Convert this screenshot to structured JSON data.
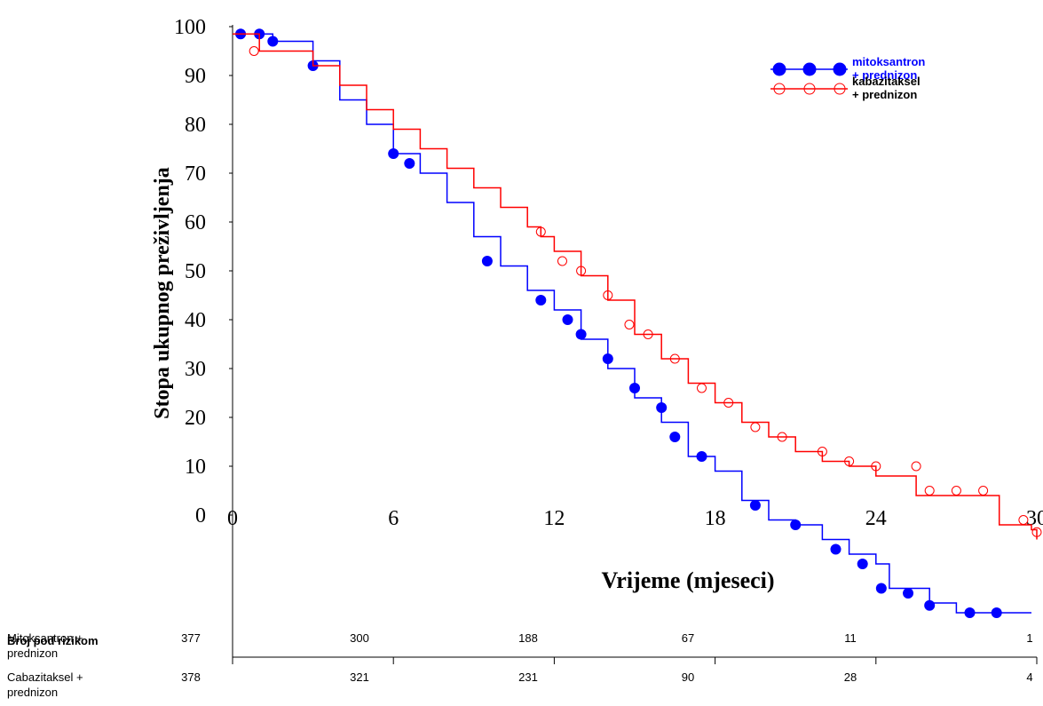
{
  "chart_data": {
    "type": "kaplan-meier",
    "y_label": "Stopa ukupnog preživljenja",
    "x_label": "Vrijeme (mjeseci)",
    "xlim": [
      0,
      30
    ],
    "ylim": [
      -29,
      101
    ],
    "xticks": [
      0,
      6,
      12,
      18,
      24,
      30
    ],
    "yticks": [
      0,
      10,
      20,
      30,
      40,
      50,
      60,
      70,
      80,
      90,
      100
    ],
    "series": [
      {
        "name": "mitoksantron\n+ prednizon",
        "color": "#0000ff",
        "marker": "filled",
        "x": [
          0,
          1.5,
          3,
          4,
          5,
          6,
          7,
          8,
          9,
          10,
          11,
          12,
          13,
          14,
          15,
          16,
          17,
          18,
          19,
          20,
          21,
          22,
          23,
          24,
          24.5,
          25,
          26,
          27,
          29.8
        ],
        "values": [
          98.5,
          97,
          93,
          85,
          80,
          74,
          70,
          64,
          57,
          51,
          46,
          42,
          36,
          30,
          24,
          19,
          12,
          9,
          3,
          -1,
          -2,
          -5,
          -8,
          -10,
          -15,
          -15,
          -18,
          -20,
          -20
        ],
        "censored_x": [
          0.3,
          1,
          1.5,
          3,
          6,
          6.6,
          9.5,
          11.5,
          12.5,
          13,
          14,
          15,
          16,
          16.5,
          17.5,
          19.5,
          21,
          22.5,
          23.5,
          24.2,
          25.2,
          26,
          27.5,
          28.5
        ],
        "censored_values": [
          98.5,
          98.5,
          97,
          92,
          74,
          72,
          52,
          44,
          40,
          37,
          32,
          26,
          22,
          16,
          12,
          2,
          -2,
          -7,
          -10,
          -15,
          -16,
          -18.5,
          -20,
          -20
        ]
      },
      {
        "name": "kabazitaksel\n+ prednizon",
        "color": "#ff0000",
        "marker": "open",
        "x": [
          0,
          1,
          3,
          4,
          5,
          6,
          7,
          8,
          9,
          10,
          11,
          11.5,
          12,
          13,
          14,
          15,
          16,
          17,
          18,
          19,
          20,
          21,
          22,
          23,
          24,
          25,
          25.5,
          28.5,
          28.6,
          29.8,
          30
        ],
        "values": [
          98.5,
          95,
          92,
          88,
          83,
          79,
          75,
          71,
          67,
          63,
          59,
          57,
          54,
          49,
          44,
          37,
          32,
          27,
          23,
          19,
          16,
          13,
          11,
          10,
          8,
          8,
          4,
          4,
          -2,
          -3,
          -5
        ],
        "censored_x": [
          0.8,
          11.5,
          12.3,
          13,
          14,
          14.8,
          15.5,
          16.5,
          17.5,
          18.5,
          19.5,
          20.5,
          22,
          23,
          24,
          25.5,
          26,
          27,
          28,
          29.5,
          30
        ],
        "censored_values": [
          95,
          58,
          52,
          50,
          45,
          39,
          37,
          32,
          26,
          23,
          18,
          16,
          13,
          11,
          10,
          10,
          5,
          5,
          5,
          -1,
          -3.5
        ]
      }
    ],
    "risk_table": {
      "title": "Broj pod rizikom",
      "rows": [
        {
          "name": "Mitoksantron +\nprednizon",
          "counts": [
            377,
            300,
            188,
            67,
            11,
            1
          ]
        },
        {
          "name": "Cabazitaksel +\nprednizon",
          "counts": [
            378,
            321,
            231,
            90,
            28,
            4
          ]
        }
      ]
    }
  }
}
